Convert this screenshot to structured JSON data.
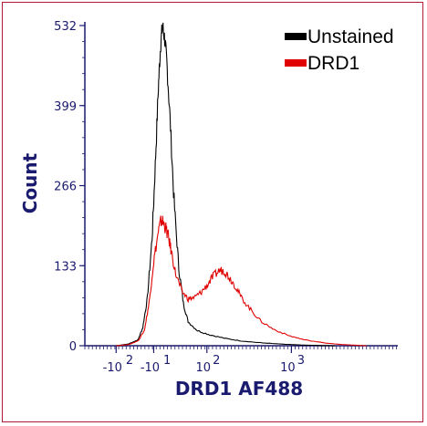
{
  "chart_data": {
    "type": "histogram",
    "xlabel": "DRD1 AF488",
    "ylabel": "Count",
    "ylim": [
      0,
      532
    ],
    "y_ticks": [
      "0",
      "133",
      "266",
      "399",
      "532"
    ],
    "x_ticks": [
      {
        "base": "-10",
        "exp": "2"
      },
      {
        "base": "-10",
        "exp": "1"
      },
      {
        "base": "10",
        "exp": "2"
      },
      {
        "base": "10",
        "exp": "3"
      }
    ],
    "legend_position": "top-right",
    "series": [
      {
        "name": "Unstained",
        "color": "#000000",
        "points": [
          [
            0.1,
            0
          ],
          [
            0.14,
            3
          ],
          [
            0.17,
            10
          ],
          [
            0.185,
            30
          ],
          [
            0.2,
            80
          ],
          [
            0.215,
            180
          ],
          [
            0.225,
            300
          ],
          [
            0.235,
            430
          ],
          [
            0.242,
            500
          ],
          [
            0.248,
            532
          ],
          [
            0.255,
            510
          ],
          [
            0.262,
            470
          ],
          [
            0.272,
            380
          ],
          [
            0.285,
            240
          ],
          [
            0.3,
            130
          ],
          [
            0.315,
            70
          ],
          [
            0.33,
            40
          ],
          [
            0.36,
            25
          ],
          [
            0.4,
            18
          ],
          [
            0.45,
            12
          ],
          [
            0.5,
            8
          ],
          [
            0.56,
            5
          ],
          [
            0.62,
            3
          ],
          [
            0.7,
            1
          ],
          [
            0.8,
            0
          ]
        ]
      },
      {
        "name": "DRD1",
        "color": "#e00000",
        "points": [
          [
            0.1,
            0
          ],
          [
            0.14,
            2
          ],
          [
            0.17,
            8
          ],
          [
            0.19,
            25
          ],
          [
            0.205,
            70
          ],
          [
            0.22,
            140
          ],
          [
            0.235,
            190
          ],
          [
            0.245,
            210
          ],
          [
            0.255,
            200
          ],
          [
            0.265,
            185
          ],
          [
            0.275,
            160
          ],
          [
            0.29,
            120
          ],
          [
            0.31,
            90
          ],
          [
            0.33,
            78
          ],
          [
            0.35,
            80
          ],
          [
            0.37,
            88
          ],
          [
            0.39,
            100
          ],
          [
            0.41,
            115
          ],
          [
            0.43,
            125
          ],
          [
            0.445,
            125
          ],
          [
            0.46,
            115
          ],
          [
            0.48,
            100
          ],
          [
            0.5,
            80
          ],
          [
            0.53,
            60
          ],
          [
            0.56,
            42
          ],
          [
            0.6,
            28
          ],
          [
            0.65,
            17
          ],
          [
            0.7,
            10
          ],
          [
            0.76,
            5
          ],
          [
            0.82,
            2
          ],
          [
            0.9,
            0
          ]
        ]
      }
    ]
  }
}
